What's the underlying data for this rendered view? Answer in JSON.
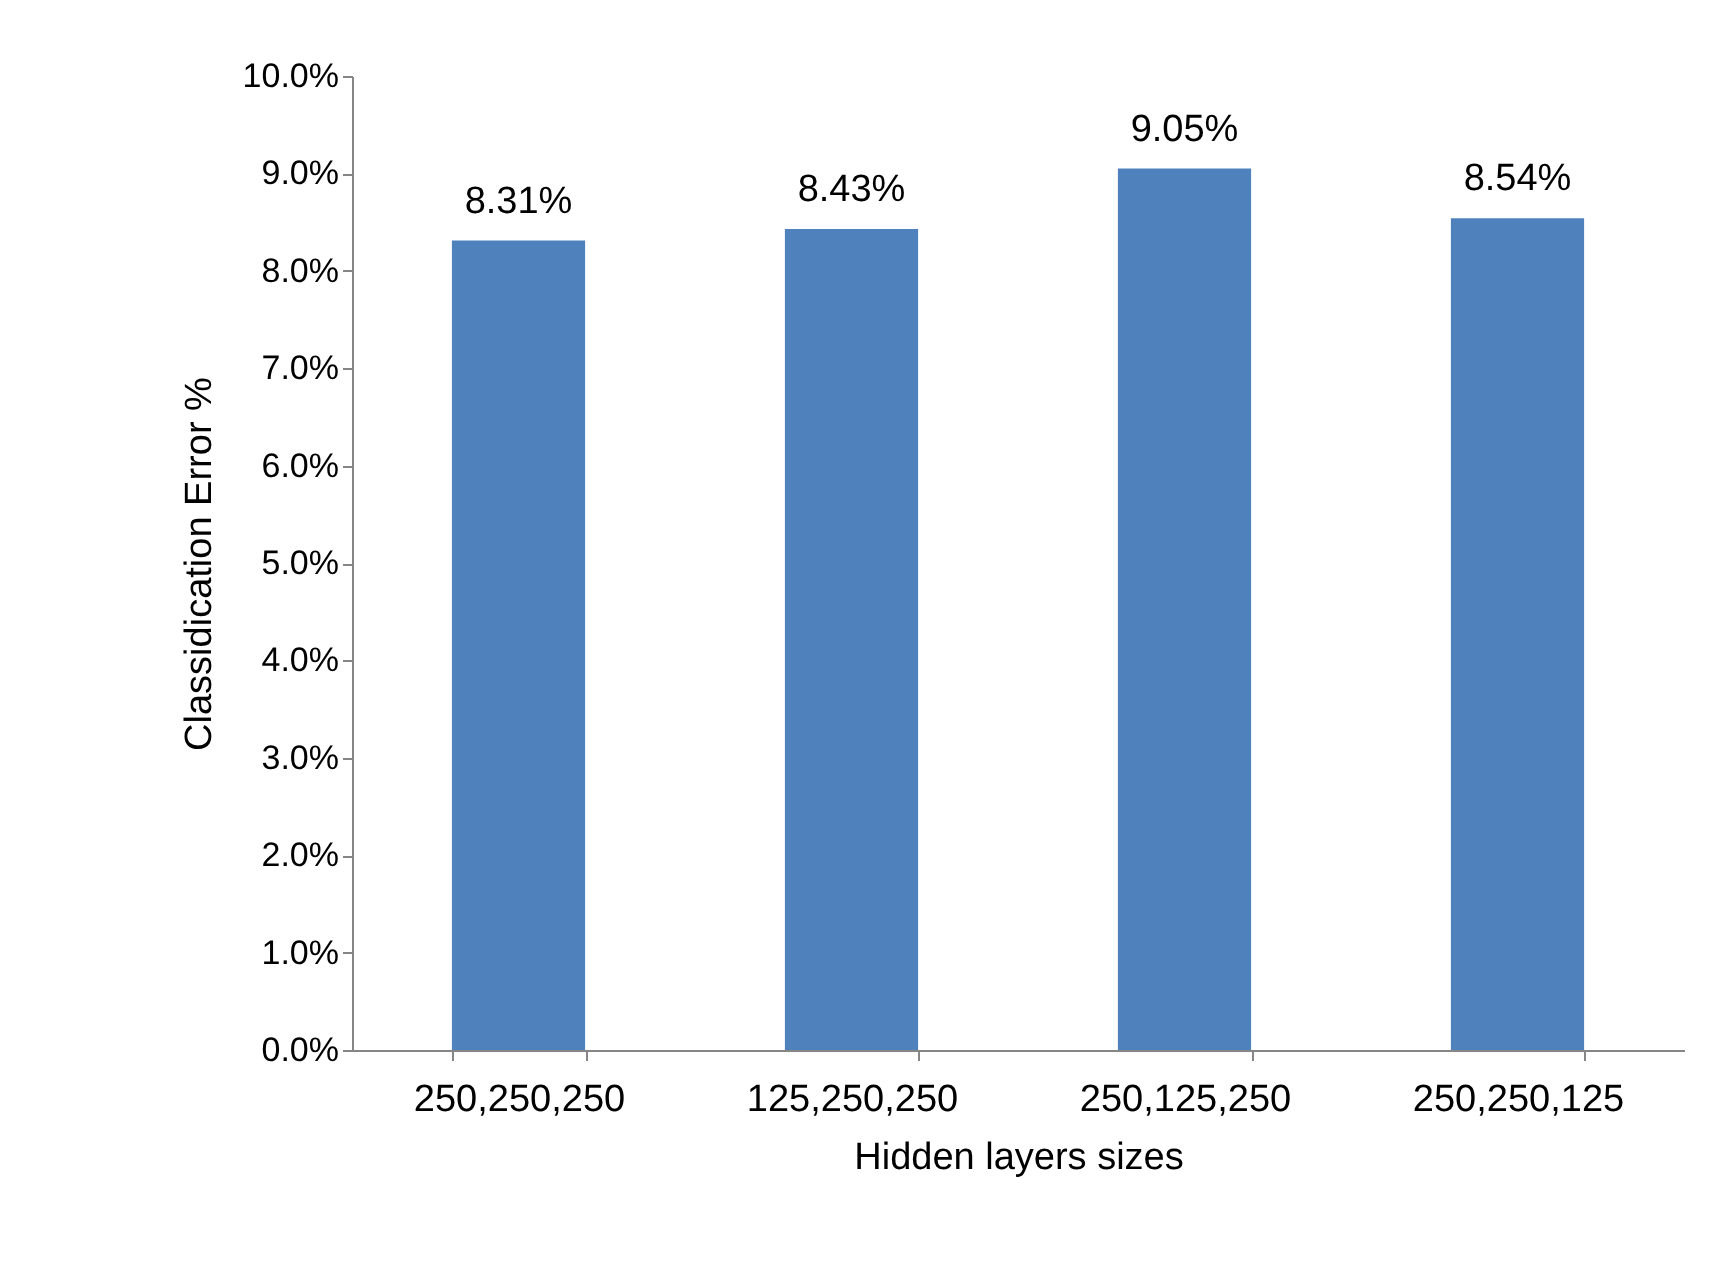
{
  "chart_data": {
    "type": "bar",
    "xlabel": "Hidden layers sizes",
    "ylabel": "Classidication Error %",
    "categories": [
      "250,250,250",
      "125,250,250",
      "250,125,250",
      "250,250,125"
    ],
    "values": [
      8.31,
      8.43,
      9.05,
      8.54
    ],
    "color": "#4f81bd",
    "value_labels": [
      "8.31%",
      "8.43%",
      "9.05%",
      "8.54%"
    ],
    "ylim": [
      0,
      10
    ],
    "yticks": [
      {
        "value": 0,
        "label": "0.0%"
      },
      {
        "value": 1,
        "label": "1.0%"
      },
      {
        "value": 2,
        "label": "2.0%"
      },
      {
        "value": 3,
        "label": "3.0%"
      },
      {
        "value": 4,
        "label": "4.0%"
      },
      {
        "value": 5,
        "label": "5.0%"
      },
      {
        "value": 6,
        "label": "6.0%"
      },
      {
        "value": 7,
        "label": "7.0%"
      },
      {
        "value": 8,
        "label": "8.0%"
      },
      {
        "value": 9,
        "label": "9.0%"
      },
      {
        "value": 10,
        "label": "10.0%"
      }
    ],
    "grid": false
  }
}
